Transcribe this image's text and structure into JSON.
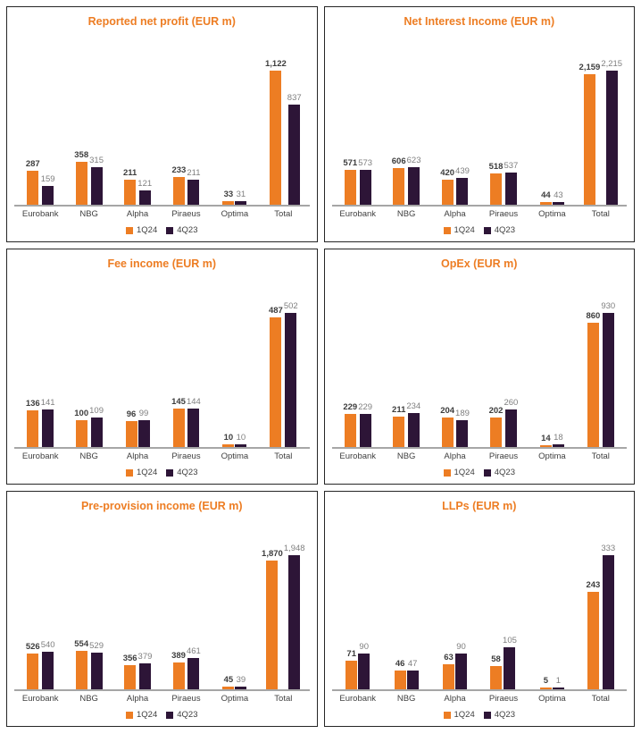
{
  "colors": {
    "series": [
      "#ED7D23",
      "#2D1537"
    ],
    "title": "#ED7D23",
    "axis_line": "#A6A6A6"
  },
  "legend": {
    "items": [
      "1Q24",
      "4Q23"
    ]
  },
  "chart_data": [
    {
      "type": "bar",
      "title": "Reported net profit (EUR m)",
      "categories": [
        "Eurobank",
        "NBG",
        "Alpha",
        "Piraeus",
        "Optima",
        "Total"
      ],
      "series": [
        {
          "name": "1Q24",
          "values": [
            287,
            358,
            211,
            233,
            33,
            1122
          ]
        },
        {
          "name": "4Q23",
          "values": [
            159,
            315,
            121,
            211,
            31,
            837
          ]
        }
      ],
      "xlabel": "",
      "ylabel": "",
      "grid": false,
      "legend_position": "bottom"
    },
    {
      "type": "bar",
      "title": "Net Interest Income (EUR m)",
      "categories": [
        "Eurobank",
        "NBG",
        "Alpha",
        "Piraeus",
        "Optima",
        "Total"
      ],
      "series": [
        {
          "name": "1Q24",
          "values": [
            571,
            606,
            420,
            518,
            44,
            2159
          ]
        },
        {
          "name": "4Q23",
          "values": [
            573,
            623,
            439,
            537,
            43,
            2215
          ]
        }
      ],
      "xlabel": "",
      "ylabel": "",
      "grid": false,
      "legend_position": "bottom"
    },
    {
      "type": "bar",
      "title": "Fee income (EUR m)",
      "categories": [
        "Eurobank",
        "NBG",
        "Alpha",
        "Piraeus",
        "Optima",
        "Total"
      ],
      "series": [
        {
          "name": "1Q24",
          "values": [
            136,
            100,
            96,
            145,
            10,
            487
          ]
        },
        {
          "name": "4Q23",
          "values": [
            141,
            109,
            99,
            144,
            10,
            502
          ]
        }
      ],
      "xlabel": "",
      "ylabel": "",
      "grid": false,
      "legend_position": "bottom"
    },
    {
      "type": "bar",
      "title": "OpEx (EUR m)",
      "categories": [
        "Eurobank",
        "NBG",
        "Alpha",
        "Piraeus",
        "Optima",
        "Total"
      ],
      "series": [
        {
          "name": "1Q24",
          "values": [
            229,
            211,
            204,
            202,
            14,
            860
          ]
        },
        {
          "name": "4Q23",
          "values": [
            229,
            234,
            189,
            260,
            18,
            930
          ]
        }
      ],
      "xlabel": "",
      "ylabel": "",
      "grid": false,
      "legend_position": "bottom"
    },
    {
      "type": "bar",
      "title": "Pre-provision income (EUR m)",
      "categories": [
        "Eurobank",
        "NBG",
        "Alpha",
        "Piraeus",
        "Optima",
        "Total"
      ],
      "series": [
        {
          "name": "1Q24",
          "values": [
            526,
            554,
            356,
            389,
            45,
            1870
          ]
        },
        {
          "name": "4Q23",
          "values": [
            540,
            529,
            379,
            461,
            39,
            1948
          ]
        }
      ],
      "xlabel": "",
      "ylabel": "",
      "grid": false,
      "legend_position": "bottom"
    },
    {
      "type": "bar",
      "title": "LLPs (EUR m)",
      "categories": [
        "Eurobank",
        "NBG",
        "Alpha",
        "Piraeus",
        "Optima",
        "Total"
      ],
      "series": [
        {
          "name": "1Q24",
          "values": [
            71,
            46,
            63,
            58,
            5,
            243
          ]
        },
        {
          "name": "4Q23",
          "values": [
            90,
            47,
            90,
            105,
            1,
            333
          ]
        }
      ],
      "xlabel": "",
      "ylabel": "",
      "grid": false,
      "legend_position": "bottom"
    }
  ]
}
